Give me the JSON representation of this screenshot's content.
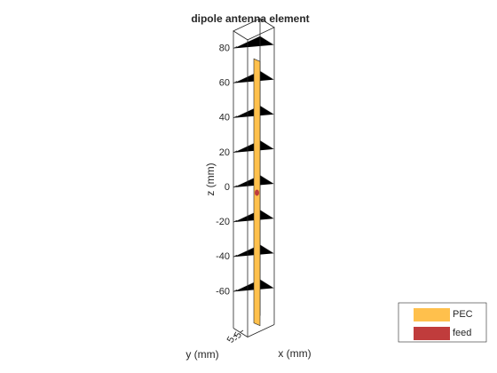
{
  "chart_data": {
    "type": "antenna3d",
    "title": "dipole antenna element",
    "xlabel": "x (mm)",
    "ylabel": "y (mm)",
    "zlabel": "z (mm)",
    "zlim": [
      -81,
      90
    ],
    "zticks": [
      -60,
      -40,
      -20,
      0,
      20,
      40,
      60,
      80
    ],
    "yticks": [
      -5,
      5
    ],
    "series": [
      {
        "name": "PEC",
        "color": "#ffc04c",
        "z": [
          -78,
          74
        ]
      },
      {
        "name": "feed",
        "color": "#c03c3c",
        "z": 0
      }
    ],
    "grid": true
  }
}
